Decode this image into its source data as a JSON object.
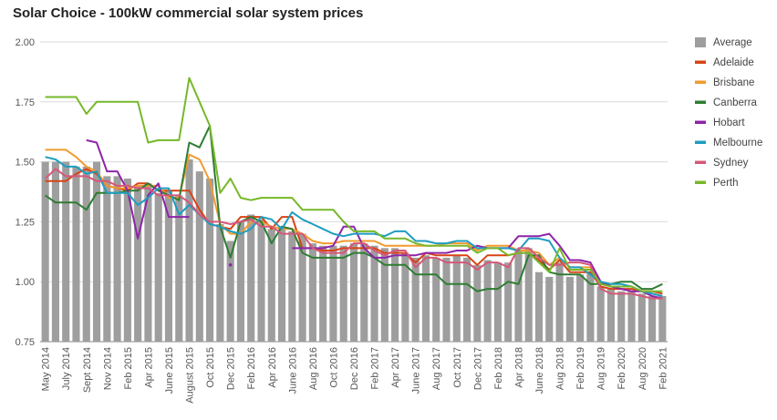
{
  "chart_data": {
    "type": "bar+line",
    "title": "Solar Choice - 100kW commercial solar system prices",
    "xlabel": "",
    "ylabel": "",
    "ylim": [
      0.75,
      2.0
    ],
    "yticks": [
      "0.75",
      "1.00",
      "1.25",
      "1.50",
      "1.75",
      "2.00"
    ],
    "xtick_labels": [
      "May 2014",
      "July 2014",
      "Sept 2014",
      "Nov 2014",
      "Feb 2015",
      "Apr 2015",
      "June 2015",
      "August 2015",
      "Oct 2015",
      "Dec 2015",
      "Feb 2016",
      "Apr 2016",
      "June 2016",
      "Aug 2016",
      "Oct 2016",
      "Dec 2016",
      "Feb 2017",
      "Apr 2017",
      "June 2017",
      "Aug 2017",
      "Oct 2017",
      "Dec 2017",
      "Feb 2018",
      "Apr 2018",
      "June 2018",
      "Aug 2018",
      "Feb 2019",
      "Aug 2019",
      "Feb 2020",
      "Aug 2020",
      "Feb 2021"
    ],
    "xtick_positions": [
      0,
      2,
      4,
      6,
      8,
      10,
      12,
      14,
      16,
      18,
      20,
      22,
      24,
      26,
      28,
      30,
      32,
      34,
      36,
      38,
      40,
      42,
      44,
      46,
      48,
      50,
      52,
      54,
      56,
      58,
      60
    ],
    "grid": true,
    "legend_position": "right",
    "series": [
      {
        "name": "Average",
        "kind": "bar",
        "color": "#9e9e9e",
        "values": [
          1.5,
          1.5,
          1.5,
          1.48,
          1.48,
          1.5,
          1.44,
          1.44,
          1.43,
          1.4,
          1.41,
          1.37,
          1.38,
          1.36,
          1.51,
          1.46,
          1.43,
          1.24,
          1.17,
          1.25,
          1.28,
          1.26,
          1.22,
          1.23,
          1.21,
          1.2,
          1.16,
          1.15,
          1.15,
          1.15,
          1.16,
          1.16,
          1.15,
          1.14,
          1.14,
          1.12,
          1.1,
          1.11,
          1.1,
          1.1,
          1.11,
          1.1,
          1.07,
          1.09,
          1.08,
          1.08,
          1.13,
          1.14,
          1.04,
          1.02,
          1.08,
          1.02,
          1.03,
          1.04,
          0.98,
          0.97,
          0.96,
          0.96,
          0.95,
          0.94,
          0.94
        ]
      },
      {
        "name": "Adelaide",
        "kind": "line",
        "color": "#d84315",
        "values": [
          1.42,
          1.42,
          1.42,
          1.45,
          1.47,
          1.45,
          1.4,
          1.39,
          1.38,
          1.41,
          1.41,
          1.38,
          1.38,
          1.38,
          1.38,
          1.3,
          1.24,
          1.23,
          1.22,
          1.27,
          1.27,
          1.27,
          1.22,
          1.27,
          1.27,
          1.14,
          1.14,
          1.13,
          1.13,
          1.14,
          1.14,
          1.14,
          1.14,
          1.12,
          1.12,
          1.12,
          1.08,
          1.12,
          1.11,
          1.11,
          1.11,
          1.11,
          1.07,
          1.11,
          1.11,
          1.11,
          1.12,
          1.12,
          1.09,
          1.05,
          1.09,
          1.04,
          1.04,
          1.04,
          0.98,
          0.97,
          0.97,
          0.97,
          0.96,
          0.96,
          0.95
        ]
      },
      {
        "name": "Brisbane",
        "kind": "line",
        "color": "#f29a2e",
        "values": [
          1.55,
          1.55,
          1.55,
          1.52,
          1.48,
          1.46,
          1.4,
          1.39,
          1.39,
          1.4,
          1.4,
          1.4,
          1.35,
          1.35,
          1.53,
          1.51,
          1.42,
          1.24,
          1.2,
          1.2,
          1.25,
          1.25,
          1.23,
          1.22,
          1.22,
          1.2,
          1.17,
          1.16,
          1.16,
          1.17,
          1.17,
          1.17,
          1.17,
          1.15,
          1.15,
          1.15,
          1.15,
          1.15,
          1.15,
          1.16,
          1.16,
          1.16,
          1.13,
          1.15,
          1.15,
          1.15,
          1.13,
          1.13,
          1.12,
          1.07,
          1.1,
          1.06,
          1.06,
          1.06,
          1.0,
          0.98,
          0.98,
          0.98,
          0.96,
          0.95,
          0.94
        ]
      },
      {
        "name": "Canberra",
        "kind": "line",
        "color": "#2e7d32",
        "values": [
          1.36,
          1.33,
          1.33,
          1.33,
          1.3,
          1.37,
          1.37,
          1.37,
          1.38,
          1.38,
          1.41,
          1.38,
          1.36,
          1.34,
          1.58,
          1.56,
          1.65,
          1.23,
          1.1,
          1.25,
          1.27,
          1.25,
          1.16,
          1.23,
          1.22,
          1.12,
          1.1,
          1.1,
          1.1,
          1.1,
          1.12,
          1.12,
          1.1,
          1.07,
          1.07,
          1.07,
          1.03,
          1.03,
          1.03,
          0.99,
          0.99,
          0.99,
          0.96,
          0.97,
          0.97,
          1.0,
          0.99,
          1.11,
          1.11,
          1.04,
          1.03,
          1.03,
          1.03,
          0.99,
          0.99,
          0.99,
          1.0,
          1.0,
          0.97,
          0.97,
          0.99
        ]
      },
      {
        "name": "Hobart",
        "kind": "line",
        "color": "#8e24aa",
        "values": [
          null,
          null,
          null,
          null,
          1.59,
          1.58,
          1.46,
          1.46,
          1.38,
          1.18,
          1.36,
          1.41,
          1.27,
          1.27,
          1.27,
          null,
          null,
          null,
          1.07,
          null,
          null,
          null,
          null,
          null,
          1.14,
          1.14,
          1.14,
          1.14,
          1.15,
          1.23,
          1.23,
          1.14,
          1.1,
          1.1,
          1.11,
          1.11,
          1.11,
          1.12,
          1.12,
          1.12,
          1.13,
          1.13,
          1.15,
          1.14,
          1.14,
          1.14,
          1.19,
          1.19,
          1.19,
          1.2,
          1.15,
          1.09,
          1.09,
          1.08,
          1.0,
          0.98,
          0.97,
          0.96,
          0.96,
          0.94,
          0.93
        ]
      },
      {
        "name": "Melbourne",
        "kind": "line",
        "color": "#1e9dc0",
        "values": [
          1.52,
          1.51,
          1.48,
          1.48,
          1.45,
          1.46,
          1.37,
          1.37,
          1.37,
          1.32,
          1.35,
          1.39,
          1.39,
          1.28,
          1.32,
          1.28,
          1.24,
          1.23,
          1.21,
          1.2,
          1.22,
          1.27,
          1.26,
          1.22,
          1.29,
          1.26,
          1.24,
          1.22,
          1.2,
          1.19,
          1.2,
          1.2,
          1.2,
          1.19,
          1.21,
          1.21,
          1.17,
          1.17,
          1.16,
          1.16,
          1.17,
          1.17,
          1.14,
          1.14,
          1.14,
          1.14,
          1.13,
          1.18,
          1.18,
          1.17,
          1.1,
          1.06,
          1.06,
          1.03,
          1.0,
          0.99,
          0.99,
          0.98,
          0.96,
          0.95,
          0.94
        ]
      },
      {
        "name": "Sydney",
        "kind": "line",
        "color": "#d6577a",
        "values": [
          1.43,
          1.47,
          1.44,
          1.44,
          1.44,
          1.42,
          1.42,
          1.4,
          1.4,
          1.39,
          1.39,
          1.36,
          1.36,
          1.36,
          1.33,
          1.28,
          1.25,
          1.25,
          1.24,
          1.25,
          1.26,
          1.23,
          1.23,
          1.2,
          1.2,
          1.2,
          1.14,
          1.12,
          1.12,
          1.12,
          1.16,
          1.16,
          1.13,
          1.11,
          1.13,
          1.13,
          1.06,
          1.1,
          1.1,
          1.08,
          1.08,
          1.08,
          1.05,
          1.08,
          1.08,
          1.06,
          1.14,
          1.14,
          1.1,
          1.07,
          1.07,
          1.08,
          1.08,
          1.07,
          0.97,
          0.95,
          0.95,
          0.95,
          0.94,
          0.93,
          0.93
        ]
      },
      {
        "name": "Perth",
        "kind": "line",
        "color": "#76b82a",
        "values": [
          1.77,
          1.77,
          1.77,
          1.77,
          1.7,
          1.75,
          1.75,
          1.75,
          1.75,
          1.75,
          1.58,
          1.59,
          1.59,
          1.59,
          1.85,
          1.75,
          1.65,
          1.37,
          1.43,
          1.35,
          1.34,
          1.35,
          1.35,
          1.35,
          1.35,
          1.3,
          1.3,
          1.3,
          1.3,
          1.25,
          1.21,
          1.21,
          1.21,
          1.18,
          1.18,
          1.18,
          1.16,
          1.15,
          1.15,
          1.15,
          1.15,
          1.15,
          1.12,
          1.14,
          1.14,
          1.11,
          1.12,
          1.12,
          1.08,
          1.04,
          1.14,
          1.05,
          1.05,
          1.05,
          0.99,
          0.98,
          0.98,
          0.98,
          0.96,
          0.96,
          0.96
        ]
      }
    ]
  }
}
